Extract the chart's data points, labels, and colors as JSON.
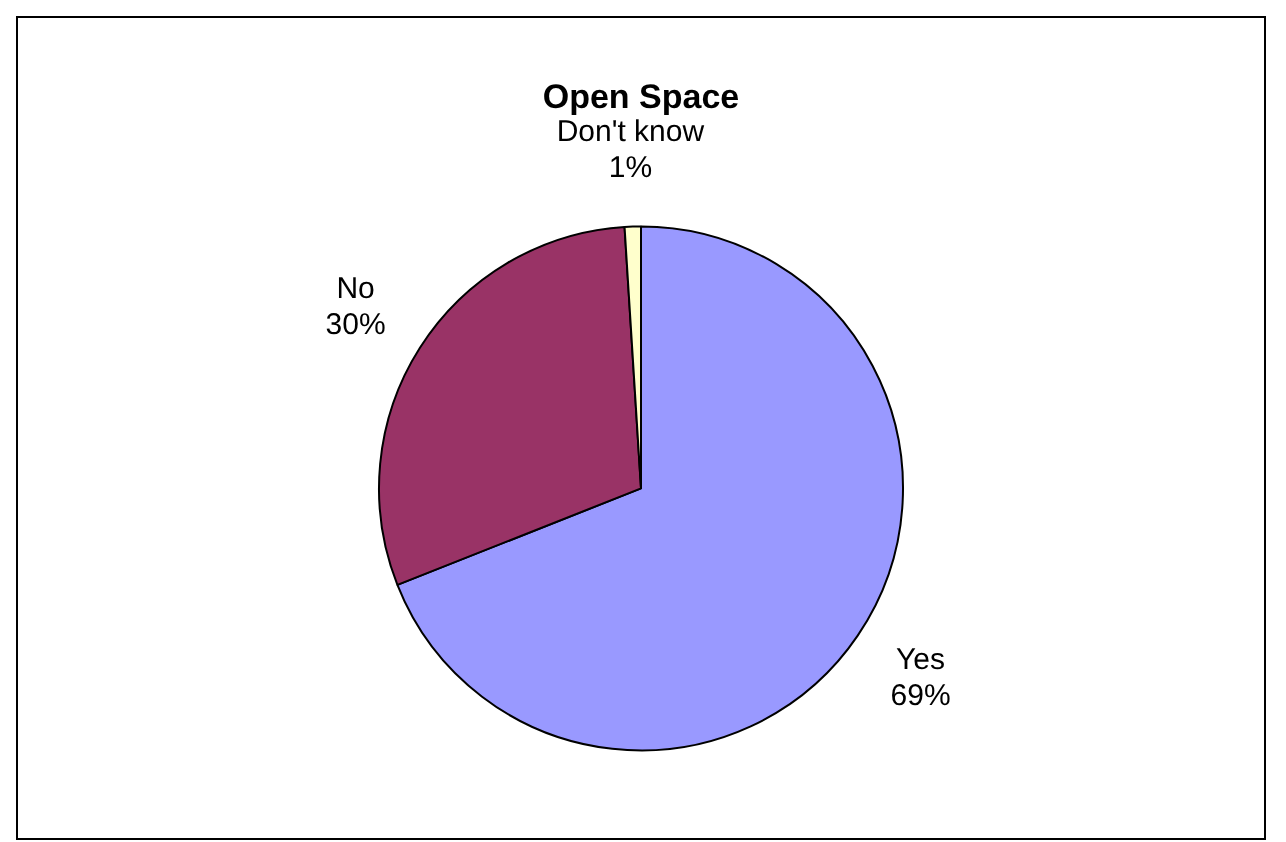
{
  "chart_data": {
    "type": "pie",
    "title": "Open Space",
    "categories": [
      "Yes",
      "No",
      "Don't know"
    ],
    "values": [
      69,
      30,
      1
    ],
    "value_labels": [
      "69%",
      "30%",
      "1%"
    ],
    "colors": [
      "#9999ff",
      "#993366",
      "#ffffcc"
    ],
    "legend": false
  }
}
